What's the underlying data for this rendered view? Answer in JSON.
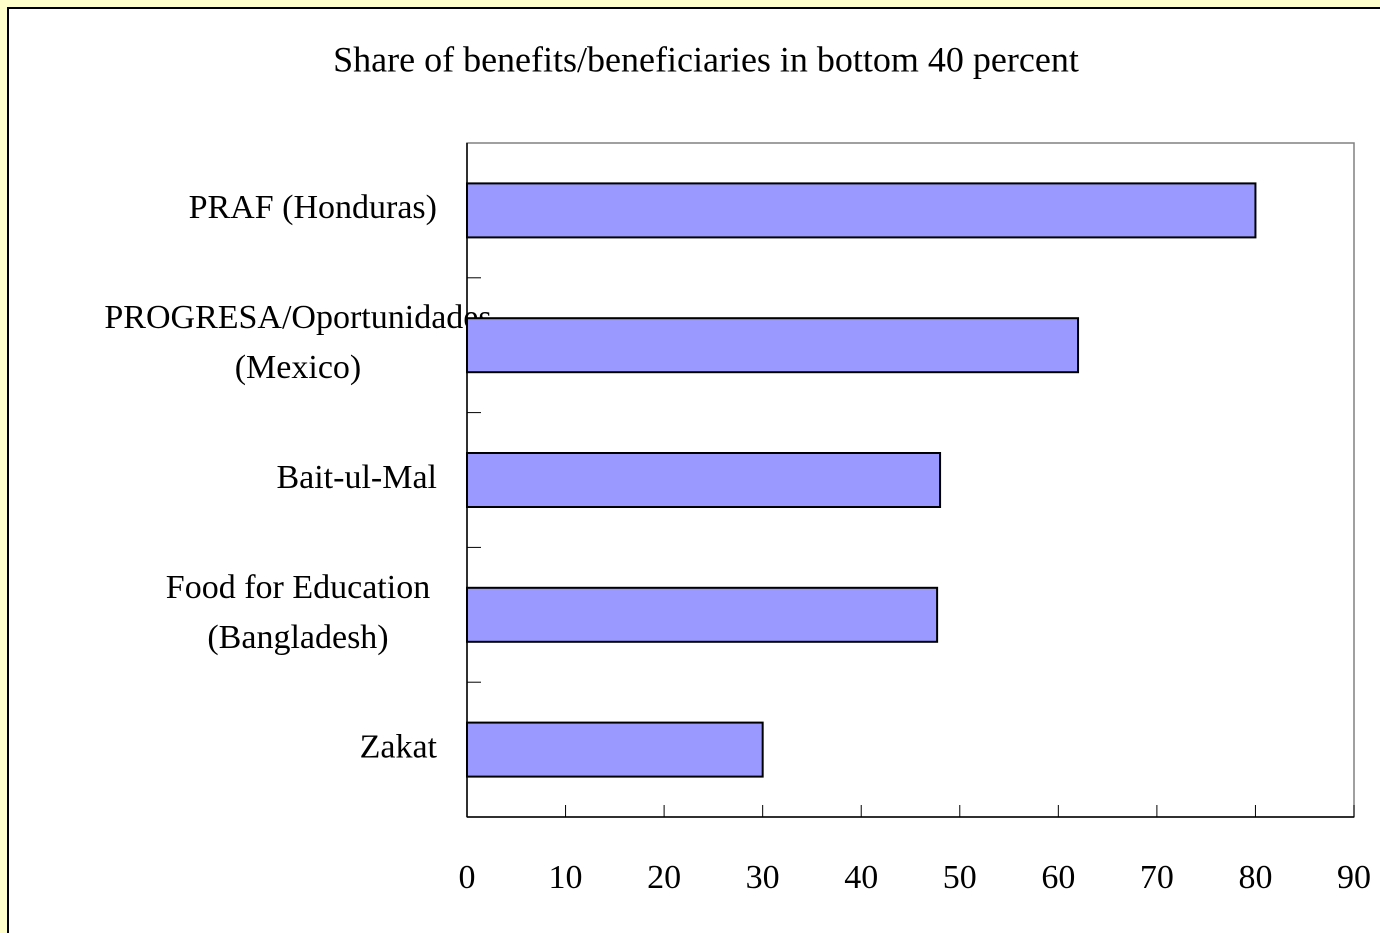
{
  "chart_data": {
    "type": "bar",
    "orientation": "horizontal",
    "title": "Share of benefits/beneficiaries in bottom 40 percent",
    "categories": [
      "PRAF (Honduras)",
      "PROGRESA/Oportunidades (Mexico)",
      "Bait-ul-Mal",
      "Food for Education (Bangladesh)",
      "Zakat"
    ],
    "values": [
      80,
      62,
      48,
      47.7,
      30
    ],
    "color": "#9999ff",
    "xlim": [
      0,
      90
    ],
    "xticks": [
      0,
      10,
      20,
      30,
      40,
      50,
      60,
      70,
      80,
      90
    ],
    "grid": false
  }
}
